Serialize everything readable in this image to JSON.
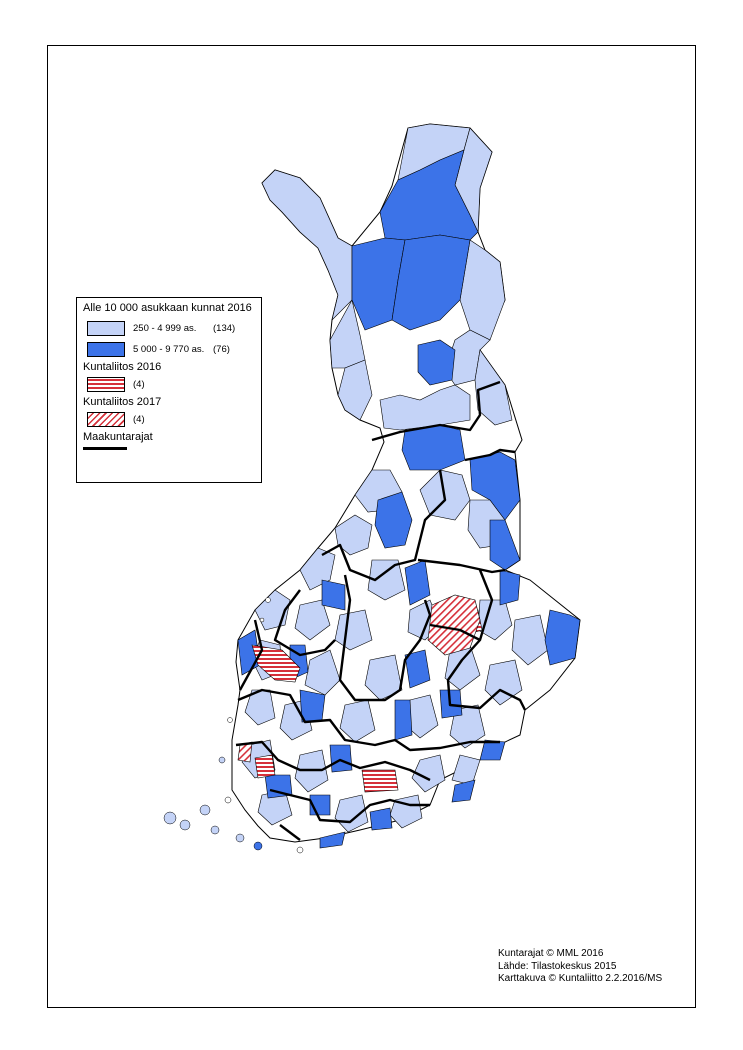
{
  "legend": {
    "title": "Alle 10 000 asukkaan kunnat 2016",
    "classes": [
      {
        "range": "250 - 4 999 as.",
        "count": "(134)",
        "color": "#c4d3f7"
      },
      {
        "range": "5 000 - 9 770 as.",
        "count": "(76)",
        "color": "#3c73e8"
      }
    ],
    "merger_2016": {
      "title": "Kuntaliitos 2016",
      "count": "(4)"
    },
    "merger_2017": {
      "title": "Kuntaliitos 2017",
      "count": "(4)"
    },
    "regional_borders": {
      "title": "Maakuntarajat"
    }
  },
  "credits": {
    "line1": "Kuntarajat © MML 2016",
    "line2": "Lähde: Tilastokeskus 2015",
    "line3": "Karttakuva © Kuntaliitto 2.2.2016/MS"
  },
  "colors": {
    "small_municipality": "#c4d3f7",
    "medium_municipality": "#3c73e8",
    "other_municipality": "#ffffff",
    "merger": "#d6303a",
    "border": "#000000"
  }
}
